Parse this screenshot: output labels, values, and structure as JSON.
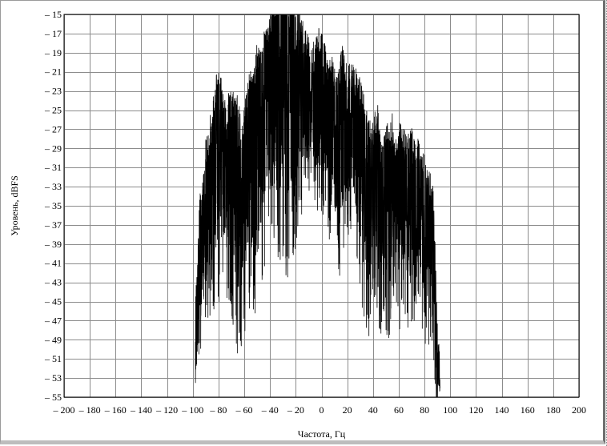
{
  "chart_data": {
    "type": "line",
    "title": "",
    "xlabel": "Частота, Гц",
    "ylabel": "Уровень, dBFS",
    "xlim": [
      -200,
      200
    ],
    "ylim": [
      -55,
      -15
    ],
    "x_ticks": [
      -200,
      -180,
      -160,
      -140,
      -120,
      -100,
      -80,
      -60,
      -40,
      -20,
      0,
      20,
      40,
      60,
      80,
      100,
      120,
      140,
      160,
      180,
      200
    ],
    "x_tick_labels": [
      "– 200",
      "– 180",
      "– 160",
      "– 140",
      "– 120",
      "– 100",
      "– 80",
      "– 60",
      "– 40",
      "– 20",
      "0",
      "20",
      "40",
      "60",
      "80",
      "100",
      "120",
      "140",
      "160",
      "180",
      "200"
    ],
    "y_ticks": [
      -15,
      -17,
      -19,
      -21,
      -23,
      -25,
      -27,
      -29,
      -31,
      -33,
      -35,
      -37,
      -39,
      -41,
      -43,
      -45,
      -47,
      -49,
      -51,
      -53,
      -55
    ],
    "y_tick_labels": [
      "– 15",
      "– 17",
      "– 19",
      "– 21",
      "– 23",
      "– 25",
      "– 27",
      "– 29",
      "– 31",
      "– 33",
      "– 35",
      "– 37",
      "– 39",
      "– 41",
      "– 43",
      "– 45",
      "– 47",
      "– 49",
      "– 51",
      "– 53",
      "– 55"
    ],
    "grid": true,
    "series_color": "#000000",
    "spectrum_envelope": {
      "x": [
        -98,
        -97,
        -95,
        -92,
        -90,
        -88,
        -85,
        -82,
        -80,
        -77,
        -74,
        -71,
        -68,
        -65,
        -62,
        -59,
        -56,
        -53,
        -50,
        -47,
        -44,
        -41,
        -38,
        -35,
        -32,
        -29,
        -26,
        -23,
        -20,
        -17,
        -14,
        -11,
        -8,
        -5,
        -2,
        1,
        4,
        7,
        10,
        13,
        16,
        19,
        22,
        25,
        28,
        31,
        34,
        37,
        40,
        43,
        46,
        49,
        52,
        55,
        58,
        61,
        64,
        67,
        70,
        73,
        76,
        79,
        82,
        85,
        87,
        88,
        89,
        90,
        91,
        92
      ],
      "peak": [
        -48,
        -44,
        -37,
        -35,
        -31,
        -30,
        -27,
        -24,
        -23,
        -25,
        -27,
        -25,
        -26,
        -26,
        -30,
        -26,
        -24,
        -23,
        -21,
        -21,
        -19,
        -19,
        -16,
        -17,
        -15,
        -15,
        -17,
        -16,
        -17,
        -17,
        -19,
        -20,
        -21,
        -20,
        -19,
        -20,
        -22,
        -22,
        -23,
        -24,
        -21,
        -23,
        -23,
        -23,
        -24,
        -25,
        -27,
        -29,
        -29,
        -27,
        -29,
        -30,
        -29,
        -28,
        -31,
        -29,
        -30,
        -30,
        -29,
        -31,
        -31,
        -32,
        -33,
        -34,
        -36,
        -40,
        -44,
        -48,
        -51,
        -53
      ],
      "floor": [
        -55,
        -55,
        -50,
        -48,
        -46,
        -46,
        -44,
        -44,
        -44,
        -41,
        -43,
        -44,
        -46,
        -49,
        -50,
        -46,
        -44,
        -44,
        -46,
        -43,
        -39,
        -37,
        -38,
        -39,
        -39,
        -41,
        -41,
        -41,
        -37,
        -35,
        -33,
        -33,
        -33,
        -34,
        -34,
        -35,
        -34,
        -38,
        -39,
        -40,
        -41,
        -38,
        -37,
        -36,
        -40,
        -43,
        -47,
        -47,
        -44,
        -44,
        -47,
        -46,
        -48,
        -44,
        -45,
        -46,
        -44,
        -46,
        -47,
        -44,
        -43,
        -47,
        -48,
        -49,
        -51,
        -53,
        -55,
        -55,
        -55,
        -55
      ]
    }
  }
}
